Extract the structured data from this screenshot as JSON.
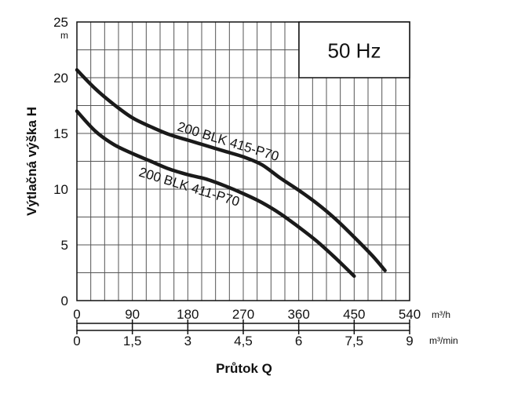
{
  "chart_data": {
    "type": "line",
    "title": "",
    "legend_box": "50 Hz",
    "ylabel": "Výtlačná výška H",
    "y_unit": "m",
    "xlabel": "Průtok Q",
    "x_unit_primary": "m³/h",
    "x_unit_secondary": "m³/min",
    "xlim": [
      0,
      540
    ],
    "ylim": [
      0,
      25
    ],
    "x_ticks": [
      0,
      90,
      180,
      270,
      360,
      450,
      540
    ],
    "x_tick_labels": [
      "0",
      "90",
      "180",
      "270",
      "360",
      "450",
      "540"
    ],
    "x2_tick_labels": [
      "0",
      "1,5",
      "3",
      "4,5",
      "6",
      "7,5",
      "9"
    ],
    "y_ticks": [
      0,
      5,
      10,
      15,
      20,
      25
    ],
    "y_tick_labels": [
      "0",
      "5",
      "10",
      "15",
      "20",
      "25"
    ],
    "grid": true,
    "series": [
      {
        "name": "200 BLK 415-P70",
        "color": "#1a1a1a",
        "x": [
          0,
          30,
          60,
          90,
          120,
          150,
          180,
          210,
          240,
          270,
          300,
          330,
          360,
          390,
          420,
          450,
          480,
          500
        ],
        "y": [
          20.7,
          19.0,
          17.6,
          16.4,
          15.6,
          14.9,
          14.4,
          13.9,
          13.4,
          12.9,
          12.2,
          11.0,
          9.9,
          8.7,
          7.3,
          5.7,
          4.0,
          2.7
        ]
      },
      {
        "name": "200 BLK 411-P70",
        "color": "#1a1a1a",
        "x": [
          0,
          30,
          60,
          90,
          120,
          150,
          180,
          210,
          240,
          270,
          300,
          330,
          360,
          390,
          420,
          450
        ],
        "y": [
          17.0,
          15.2,
          14.0,
          13.2,
          12.5,
          11.8,
          11.3,
          10.9,
          10.3,
          9.6,
          8.8,
          7.8,
          6.6,
          5.3,
          3.8,
          2.2
        ]
      }
    ]
  }
}
